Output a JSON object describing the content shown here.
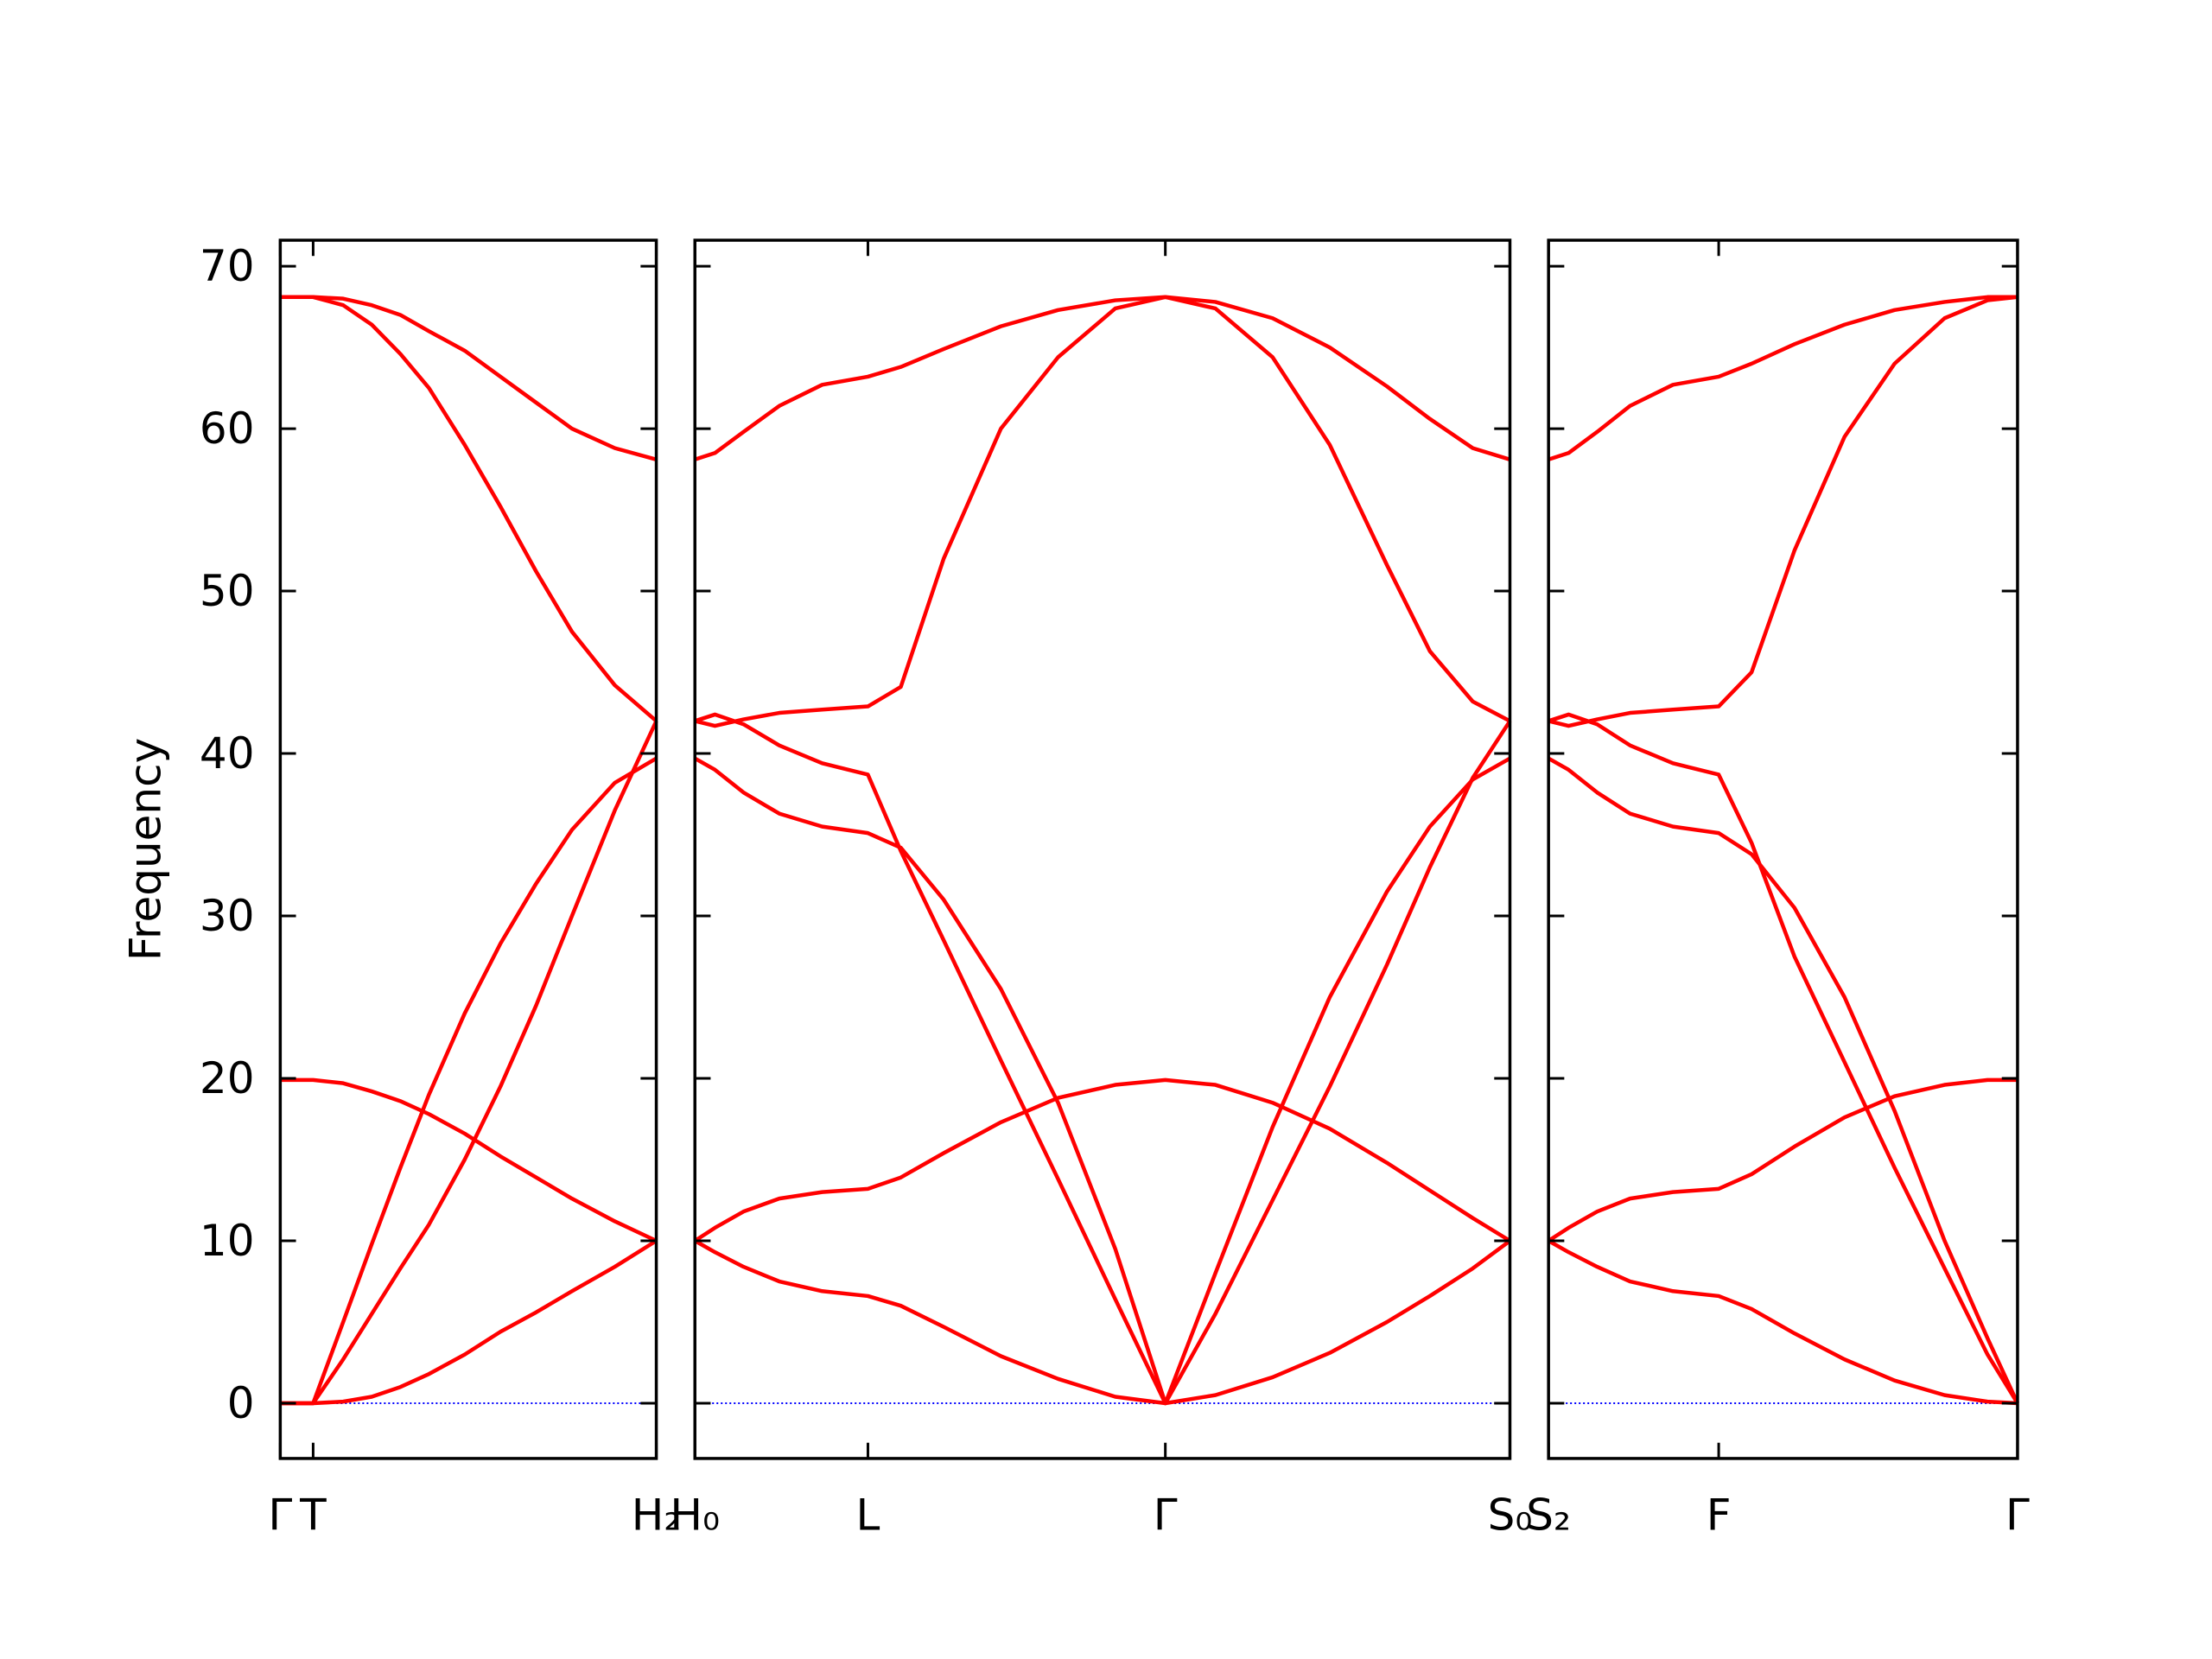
{
  "chart_data": [
    {
      "type": "line",
      "ylabel": "Frequency",
      "ytick_labels": true,
      "xlim": [
        0,
        2.63
      ],
      "ylim": [
        -3.4,
        71.6
      ],
      "xticks": [
        {
          "value": 0,
          "label": "Γ"
        },
        {
          "value": 0.23,
          "label": "T"
        },
        {
          "value": 2.63,
          "label": "H₂"
        }
      ],
      "yticks": [
        0,
        10,
        20,
        30,
        40,
        50,
        60,
        70
      ],
      "hline": 0,
      "hline_color": "#0000ff",
      "x": [
        0,
        0.23,
        0.44,
        0.64,
        0.84,
        1.04,
        1.29,
        1.54,
        1.79,
        2.04,
        2.34,
        2.63
      ],
      "series": [
        {
          "color": "#ff0000",
          "values": [
            0,
            0,
            0.1,
            0.4,
            1.0,
            1.8,
            3.0,
            4.4,
            5.6,
            6.9,
            8.4,
            10
          ]
        },
        {
          "color": "#ff0000",
          "values": [
            19.9,
            19.9,
            19.7,
            19.2,
            18.6,
            17.8,
            16.6,
            15.2,
            13.9,
            12.6,
            11.2,
            10
          ]
        },
        {
          "color": "#ff0000",
          "values": [
            0,
            0,
            5,
            9.8,
            14.5,
            19,
            24,
            28.3,
            32,
            35.3,
            38.2,
            39.7
          ]
        },
        {
          "color": "#ff0000",
          "values": [
            0,
            0,
            2.7,
            5.5,
            8.3,
            11,
            15,
            19.5,
            24.5,
            30,
            36.5,
            42
          ]
        },
        {
          "color": "#ff0000",
          "values": [
            68.1,
            68.1,
            67.6,
            66.4,
            64.6,
            62.5,
            59,
            55.2,
            51.2,
            47.5,
            44.2,
            42
          ]
        },
        {
          "color": "#ff0000",
          "values": [
            68.1,
            68.1,
            68,
            67.6,
            67,
            66,
            64.8,
            63.2,
            61.6,
            60,
            58.8,
            58.1
          ]
        }
      ]
    },
    {
      "type": "line",
      "ytick_labels": false,
      "xlim": [
        0,
        5.7
      ],
      "ylim": [
        -3.4,
        71.6
      ],
      "xticks": [
        {
          "value": 0,
          "label": "H₀"
        },
        {
          "value": 1.21,
          "label": "L"
        },
        {
          "value": 3.29,
          "label": "Γ"
        },
        {
          "value": 5.7,
          "label": "S₀"
        }
      ],
      "yticks": [
        0,
        10,
        20,
        30,
        40,
        50,
        60,
        70
      ],
      "hline": 0,
      "hline_color": "#0000ff",
      "x": [
        0,
        0.14,
        0.34,
        0.59,
        0.89,
        1.21,
        1.44,
        1.74,
        2.14,
        2.54,
        2.94,
        3.29,
        3.64,
        4.04,
        4.44,
        4.84,
        5.14,
        5.44,
        5.7
      ],
      "series": [
        {
          "color": "#ff0000",
          "values": [
            10,
            9.3,
            8.4,
            7.5,
            6.9,
            6.6,
            6.0,
            4.7,
            2.9,
            1.5,
            0.4,
            0,
            0.5,
            1.6,
            3.1,
            5.0,
            6.6,
            8.3,
            10
          ]
        },
        {
          "color": "#ff0000",
          "values": [
            10,
            10.8,
            11.8,
            12.6,
            13.0,
            13.2,
            13.9,
            15.4,
            17.3,
            18.8,
            19.6,
            19.9,
            19.6,
            18.5,
            16.9,
            14.8,
            13.1,
            11.4,
            10
          ]
        },
        {
          "color": "#ff0000",
          "values": [
            39.7,
            39.0,
            37.6,
            36.3,
            35.5,
            35.1,
            34.2,
            31,
            25.5,
            18.5,
            9.5,
            0,
            8,
            17,
            25,
            31.5,
            35.5,
            38.4,
            39.7
          ]
        },
        {
          "color": "#ff0000",
          "values": [
            42,
            42.4,
            41.8,
            40.5,
            39.4,
            38.7,
            34,
            28.5,
            21.1,
            13.8,
            6.4,
            0,
            5.5,
            12.5,
            19.5,
            27,
            33,
            38.5,
            42
          ]
        },
        {
          "color": "#ff0000",
          "values": [
            42,
            41.7,
            42.1,
            42.5,
            42.7,
            42.9,
            44.1,
            52,
            60,
            64.4,
            67.4,
            68.1,
            67.4,
            64.4,
            59,
            51.6,
            46.3,
            43.2,
            42
          ]
        },
        {
          "color": "#ff0000",
          "values": [
            58.1,
            58.5,
            59.8,
            61.4,
            62.7,
            63.2,
            63.8,
            64.9,
            66.3,
            67.3,
            67.9,
            68.1,
            67.8,
            66.8,
            65,
            62.6,
            60.6,
            58.8,
            58.1
          ]
        }
      ]
    },
    {
      "type": "line",
      "ytick_labels": false,
      "xlim": [
        0,
        3.28
      ],
      "ylim": [
        -3.4,
        71.6
      ],
      "xticks": [
        {
          "value": 0,
          "label": "S₂"
        },
        {
          "value": 1.19,
          "label": "F"
        },
        {
          "value": 3.28,
          "label": "Γ"
        }
      ],
      "yticks": [
        0,
        10,
        20,
        30,
        40,
        50,
        60,
        70
      ],
      "hline": 0,
      "hline_color": "#0000ff",
      "x": [
        0,
        0.14,
        0.34,
        0.57,
        0.87,
        1.19,
        1.42,
        1.72,
        2.07,
        2.42,
        2.77,
        3.07,
        3.28
      ],
      "series": [
        {
          "color": "#ff0000",
          "values": [
            10,
            9.3,
            8.4,
            7.5,
            6.9,
            6.6,
            5.8,
            4.3,
            2.7,
            1.4,
            0.5,
            0.1,
            0
          ]
        },
        {
          "color": "#ff0000",
          "values": [
            10,
            10.8,
            11.8,
            12.6,
            13.0,
            13.2,
            14.1,
            15.8,
            17.6,
            18.9,
            19.6,
            19.9,
            19.9
          ]
        },
        {
          "color": "#ff0000",
          "values": [
            39.7,
            39.0,
            37.6,
            36.3,
            35.5,
            35.1,
            33.8,
            30.5,
            25,
            18,
            10,
            4,
            0
          ]
        },
        {
          "color": "#ff0000",
          "values": [
            42,
            42.4,
            41.8,
            40.5,
            39.4,
            38.7,
            34.5,
            27.5,
            21,
            14.5,
            8.3,
            3,
            0
          ]
        },
        {
          "color": "#ff0000",
          "values": [
            42,
            41.7,
            42.1,
            42.5,
            42.7,
            42.9,
            45,
            52.5,
            59.5,
            64,
            66.8,
            67.9,
            68.1
          ]
        },
        {
          "color": "#ff0000",
          "values": [
            58.1,
            58.5,
            59.8,
            61.4,
            62.7,
            63.2,
            64.0,
            65.2,
            66.4,
            67.3,
            67.8,
            68.1,
            68.1
          ]
        }
      ]
    }
  ]
}
